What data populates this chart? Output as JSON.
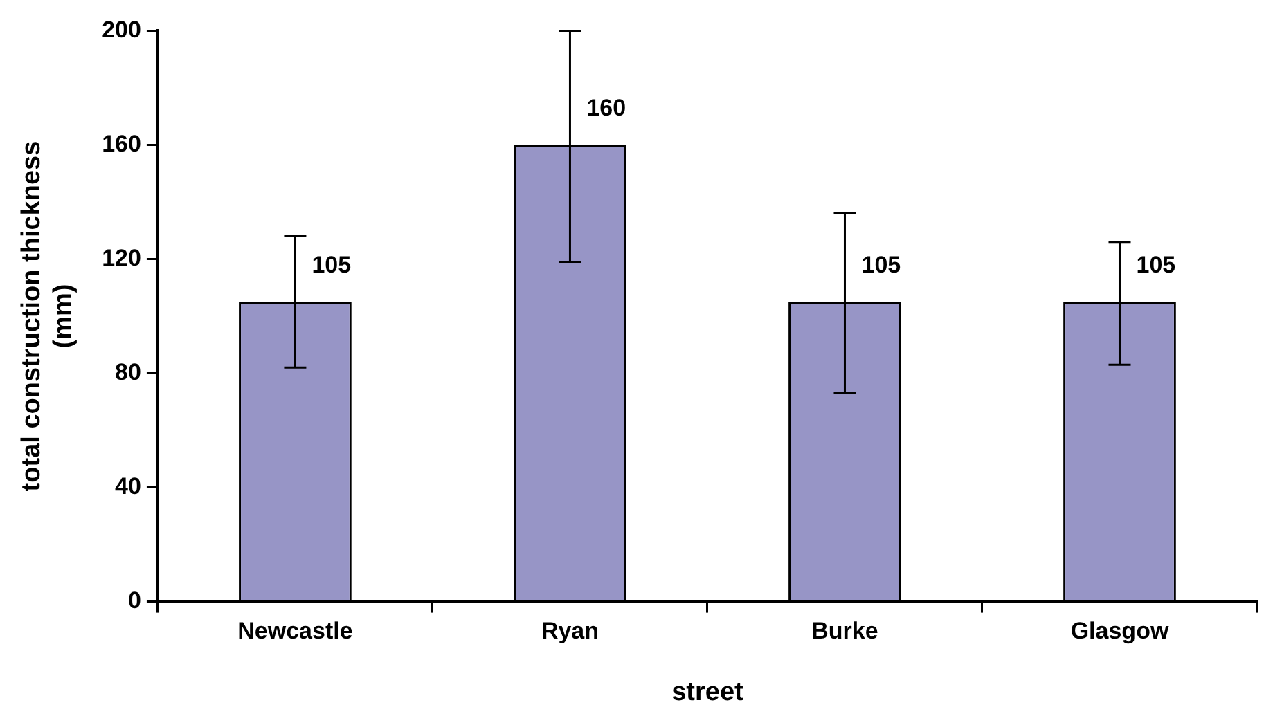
{
  "chart_data": {
    "type": "bar",
    "xlabel": "street",
    "ylabel": "total construction thickness\n(mm)",
    "categories": [
      "Newcastle",
      "Ryan",
      "Burke",
      "Glasgow"
    ],
    "values": [
      105,
      160,
      105,
      105
    ],
    "errors": [
      [
        82,
        128
      ],
      [
        119,
        200
      ],
      [
        73,
        136
      ],
      [
        83,
        126
      ]
    ],
    "color": "#9795c6",
    "ylim": [
      0,
      200
    ],
    "yticks": [
      0,
      40,
      80,
      120,
      160,
      200
    ],
    "grid": false,
    "legend": false,
    "data_labels": true
  }
}
